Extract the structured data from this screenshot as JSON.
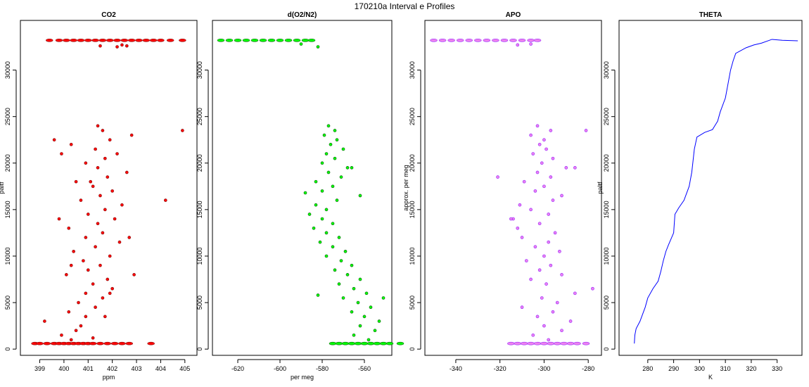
{
  "title": "170210a   Interval e Profiles",
  "chart_data": [
    {
      "type": "scatter",
      "title": "CO2",
      "xlabel": "ppm",
      "ylabel": "paltf",
      "xlim": [
        398.2,
        405.5
      ],
      "ylim": [
        -670,
        35340
      ],
      "xticks": [
        399,
        400,
        401,
        402,
        403,
        404,
        405
      ],
      "yticks": [
        0,
        5000,
        10000,
        15000,
        20000,
        25000,
        30000
      ],
      "fill": "#ff0000",
      "stroke": "#8b1a1a",
      "points": [
        [
          398.8,
          600
        ],
        [
          399.0,
          600
        ],
        [
          399.3,
          600
        ],
        [
          399.6,
          600
        ],
        [
          399.8,
          600
        ],
        [
          400.0,
          600
        ],
        [
          400.2,
          600
        ],
        [
          400.4,
          600
        ],
        [
          400.6,
          600
        ],
        [
          400.8,
          600
        ],
        [
          401.0,
          600
        ],
        [
          401.2,
          600
        ],
        [
          401.5,
          600
        ],
        [
          401.8,
          600
        ],
        [
          402.1,
          600
        ],
        [
          402.4,
          600
        ],
        [
          402.7,
          600
        ],
        [
          403.6,
          600
        ],
        [
          399.4,
          33200
        ],
        [
          399.8,
          33200
        ],
        [
          400.1,
          33200
        ],
        [
          400.4,
          33200
        ],
        [
          400.7,
          33200
        ],
        [
          401.0,
          33200
        ],
        [
          401.3,
          33200
        ],
        [
          401.6,
          33200
        ],
        [
          401.9,
          33200
        ],
        [
          402.2,
          33200
        ],
        [
          402.5,
          33200
        ],
        [
          402.8,
          33200
        ],
        [
          403.1,
          33200
        ],
        [
          403.4,
          33200
        ],
        [
          403.7,
          33200
        ],
        [
          404.0,
          33200
        ],
        [
          404.4,
          33200
        ],
        [
          404.9,
          33200
        ],
        [
          401.5,
          32600
        ],
        [
          402.2,
          32500
        ],
        [
          402.4,
          32700
        ],
        [
          402.6,
          32600
        ],
        [
          400.3,
          1000
        ],
        [
          399.9,
          1500
        ],
        [
          400.5,
          2000
        ],
        [
          400.7,
          2500
        ],
        [
          399.2,
          3000
        ],
        [
          400.9,
          3500
        ],
        [
          400.2,
          4000
        ],
        [
          401.3,
          4500
        ],
        [
          400.6,
          5000
        ],
        [
          401.6,
          5500
        ],
        [
          400.9,
          6000
        ],
        [
          402.0,
          6500
        ],
        [
          401.2,
          7000
        ],
        [
          401.8,
          7500
        ],
        [
          400.1,
          8000
        ],
        [
          401.0,
          8500
        ],
        [
          401.5,
          9000
        ],
        [
          400.8,
          9500
        ],
        [
          401.9,
          10000
        ],
        [
          400.4,
          10500
        ],
        [
          401.3,
          11000
        ],
        [
          402.3,
          11500
        ],
        [
          400.9,
          12000
        ],
        [
          401.6,
          12500
        ],
        [
          400.2,
          13000
        ],
        [
          401.4,
          13500
        ],
        [
          402.1,
          14000
        ],
        [
          401.0,
          14500
        ],
        [
          401.7,
          15000
        ],
        [
          402.4,
          15500
        ],
        [
          400.7,
          16000
        ],
        [
          401.5,
          16500
        ],
        [
          402.0,
          17000
        ],
        [
          401.2,
          17500
        ],
        [
          400.5,
          18000
        ],
        [
          401.8,
          18500
        ],
        [
          402.6,
          19000
        ],
        [
          401.4,
          19500
        ],
        [
          400.9,
          20000
        ],
        [
          401.7,
          20500
        ],
        [
          402.2,
          21000
        ],
        [
          401.3,
          21500
        ],
        [
          400.3,
          22000
        ],
        [
          401.9,
          22500
        ],
        [
          402.8,
          23000
        ],
        [
          401.6,
          23500
        ],
        [
          401.4,
          24000
        ],
        [
          401.2,
          1200
        ],
        [
          401.7,
          3500
        ],
        [
          401.9,
          6000
        ],
        [
          400.3,
          9000
        ],
        [
          402.7,
          12000
        ],
        [
          404.2,
          16000
        ],
        [
          401.1,
          18000
        ],
        [
          399.9,
          21000
        ],
        [
          404.9,
          23500
        ],
        [
          399.6,
          22500
        ],
        [
          399.8,
          14000
        ],
        [
          402.9,
          8000
        ]
      ]
    },
    {
      "type": "scatter",
      "title": "d(O2/N2)",
      "xlabel": "per meg",
      "ylabel": "",
      "xlim": [
        -632,
        -547
      ],
      "ylim": [
        -670,
        35340
      ],
      "xticks": [
        -620,
        -600,
        -580,
        -560
      ],
      "yticks": [
        0,
        5000,
        10000,
        15000,
        20000,
        25000,
        30000
      ],
      "fill": "#00ff00",
      "stroke": "#1a6b1a",
      "points": [
        [
          -575,
          600
        ],
        [
          -572,
          600
        ],
        [
          -569,
          600
        ],
        [
          -566,
          600
        ],
        [
          -563,
          600
        ],
        [
          -560,
          600
        ],
        [
          -557,
          600
        ],
        [
          -554,
          600
        ],
        [
          -551,
          600
        ],
        [
          -548,
          600
        ],
        [
          -543,
          600
        ],
        [
          -628,
          33200
        ],
        [
          -624,
          33200
        ],
        [
          -620,
          33200
        ],
        [
          -616,
          33200
        ],
        [
          -612,
          33200
        ],
        [
          -608,
          33200
        ],
        [
          -604,
          33200
        ],
        [
          -600,
          33200
        ],
        [
          -596,
          33200
        ],
        [
          -592,
          33200
        ],
        [
          -588,
          33200
        ],
        [
          -585,
          33200
        ],
        [
          -590,
          32800
        ],
        [
          -582,
          32500
        ],
        [
          -558,
          1000
        ],
        [
          -565,
          1500
        ],
        [
          -555,
          2000
        ],
        [
          -562,
          2500
        ],
        [
          -553,
          3000
        ],
        [
          -560,
          3500
        ],
        [
          -566,
          4000
        ],
        [
          -557,
          4500
        ],
        [
          -563,
          5000
        ],
        [
          -570,
          5500
        ],
        [
          -559,
          6000
        ],
        [
          -565,
          6500
        ],
        [
          -572,
          7000
        ],
        [
          -562,
          7500
        ],
        [
          -568,
          8000
        ],
        [
          -574,
          8500
        ],
        [
          -566,
          9000
        ],
        [
          -571,
          9500
        ],
        [
          -578,
          10000
        ],
        [
          -569,
          10500
        ],
        [
          -575,
          11000
        ],
        [
          -581,
          11500
        ],
        [
          -572,
          12000
        ],
        [
          -578,
          12500
        ],
        [
          -584,
          13000
        ],
        [
          -575,
          13500
        ],
        [
          -580,
          14000
        ],
        [
          -586,
          14500
        ],
        [
          -578,
          15000
        ],
        [
          -583,
          15500
        ],
        [
          -573,
          16000
        ],
        [
          -562,
          16500
        ],
        [
          -580,
          17000
        ],
        [
          -575,
          17500
        ],
        [
          -583,
          18000
        ],
        [
          -571,
          18500
        ],
        [
          -577,
          19000
        ],
        [
          -568,
          19500
        ],
        [
          -580,
          20000
        ],
        [
          -574,
          20500
        ],
        [
          -578,
          21000
        ],
        [
          -570,
          21500
        ],
        [
          -576,
          22000
        ],
        [
          -573,
          22500
        ],
        [
          -579,
          23000
        ],
        [
          -574,
          23500
        ],
        [
          -577,
          24000
        ],
        [
          -588,
          16800
        ],
        [
          -582,
          5800
        ],
        [
          -551,
          5500
        ],
        [
          -566,
          19500
        ]
      ]
    },
    {
      "type": "scatter",
      "title": "APO",
      "xlabel": "",
      "ylabel": "approx. per meg",
      "xlim": [
        -354,
        -274
      ],
      "ylim": [
        -670,
        35340
      ],
      "xticks": [
        -340,
        -320,
        -300,
        -280
      ],
      "yticks": [
        0,
        5000,
        10000,
        15000,
        20000,
        25000,
        30000
      ],
      "fill": "#ee82ee",
      "stroke": "#9b30ff",
      "points": [
        [
          -315,
          600
        ],
        [
          -312,
          600
        ],
        [
          -309,
          600
        ],
        [
          -306,
          600
        ],
        [
          -303,
          600
        ],
        [
          -300,
          600
        ],
        [
          -297,
          600
        ],
        [
          -294,
          600
        ],
        [
          -291,
          600
        ],
        [
          -288,
          600
        ],
        [
          -285,
          600
        ],
        [
          -281,
          600
        ],
        [
          -350,
          33200
        ],
        [
          -346,
          33200
        ],
        [
          -342,
          33200
        ],
        [
          -338,
          33200
        ],
        [
          -334,
          33200
        ],
        [
          -330,
          33200
        ],
        [
          -326,
          33200
        ],
        [
          -322,
          33200
        ],
        [
          -318,
          33200
        ],
        [
          -314,
          33200
        ],
        [
          -310,
          33200
        ],
        [
          -306,
          33200
        ],
        [
          -303,
          33200
        ],
        [
          -312,
          32700
        ],
        [
          -306,
          32800
        ],
        [
          -298,
          1000
        ],
        [
          -305,
          1500
        ],
        [
          -292,
          2000
        ],
        [
          -300,
          2500
        ],
        [
          -288,
          3000
        ],
        [
          -303,
          3500
        ],
        [
          -296,
          4000
        ],
        [
          -310,
          4500
        ],
        [
          -294,
          5000
        ],
        [
          -301,
          5500
        ],
        [
          -286,
          6000
        ],
        [
          -278,
          6500
        ],
        [
          -299,
          7000
        ],
        [
          -306,
          7500
        ],
        [
          -292,
          8000
        ],
        [
          -302,
          8500
        ],
        [
          -297,
          9000
        ],
        [
          -308,
          9500
        ],
        [
          -300,
          10000
        ],
        [
          -293,
          10500
        ],
        [
          -304,
          11000
        ],
        [
          -298,
          11500
        ],
        [
          -310,
          12000
        ],
        [
          -295,
          12500
        ],
        [
          -312,
          13000
        ],
        [
          -302,
          13500
        ],
        [
          -314,
          14000
        ],
        [
          -298,
          14500
        ],
        [
          -306,
          15000
        ],
        [
          -311,
          15500
        ],
        [
          -296,
          16000
        ],
        [
          -292,
          16500
        ],
        [
          -304,
          17000
        ],
        [
          -300,
          17500
        ],
        [
          -309,
          18000
        ],
        [
          -297,
          18500
        ],
        [
          -303,
          19000
        ],
        [
          -290,
          19500
        ],
        [
          -301,
          20000
        ],
        [
          -296,
          20500
        ],
        [
          -305,
          21000
        ],
        [
          -299,
          21500
        ],
        [
          -302,
          22000
        ],
        [
          -300,
          22500
        ],
        [
          -306,
          23000
        ],
        [
          -297,
          23500
        ],
        [
          -303,
          24000
        ],
        [
          -321,
          18500
        ],
        [
          -286,
          19500
        ],
        [
          -281,
          23500
        ],
        [
          -315,
          14000
        ]
      ]
    },
    {
      "type": "line",
      "title": "THETA",
      "xlabel": "K",
      "ylabel": "paltf",
      "xlim": [
        268.9,
        339.6
      ],
      "ylim": [
        -670,
        35340
      ],
      "xticks": [
        280,
        290,
        300,
        310,
        320,
        330
      ],
      "yticks": [
        0,
        5000,
        10000,
        15000,
        20000,
        25000,
        30000
      ],
      "stroke": "#0000ff",
      "points": [
        [
          274.8,
          600
        ],
        [
          275,
          1500
        ],
        [
          275.5,
          2200
        ],
        [
          277,
          3000
        ],
        [
          279,
          4500
        ],
        [
          280,
          5500
        ],
        [
          282,
          6500
        ],
        [
          284,
          7300
        ],
        [
          285,
          8300
        ],
        [
          286,
          9500
        ],
        [
          287,
          10500
        ],
        [
          288,
          11200
        ],
        [
          290,
          12500
        ],
        [
          290.5,
          14500
        ],
        [
          292,
          15200
        ],
        [
          294,
          16000
        ],
        [
          296,
          17500
        ],
        [
          297,
          19000
        ],
        [
          298,
          21500
        ],
        [
          299,
          22800
        ],
        [
          302,
          23300
        ],
        [
          305,
          23600
        ],
        [
          307,
          24500
        ],
        [
          308,
          25500
        ],
        [
          310,
          27000
        ],
        [
          311,
          28500
        ],
        [
          312,
          30000
        ],
        [
          313,
          31000
        ],
        [
          314,
          31800
        ],
        [
          318,
          32400
        ],
        [
          321,
          32700
        ],
        [
          324,
          32900
        ],
        [
          328,
          33300
        ],
        [
          332,
          33200
        ],
        [
          338,
          33150
        ]
      ]
    }
  ]
}
